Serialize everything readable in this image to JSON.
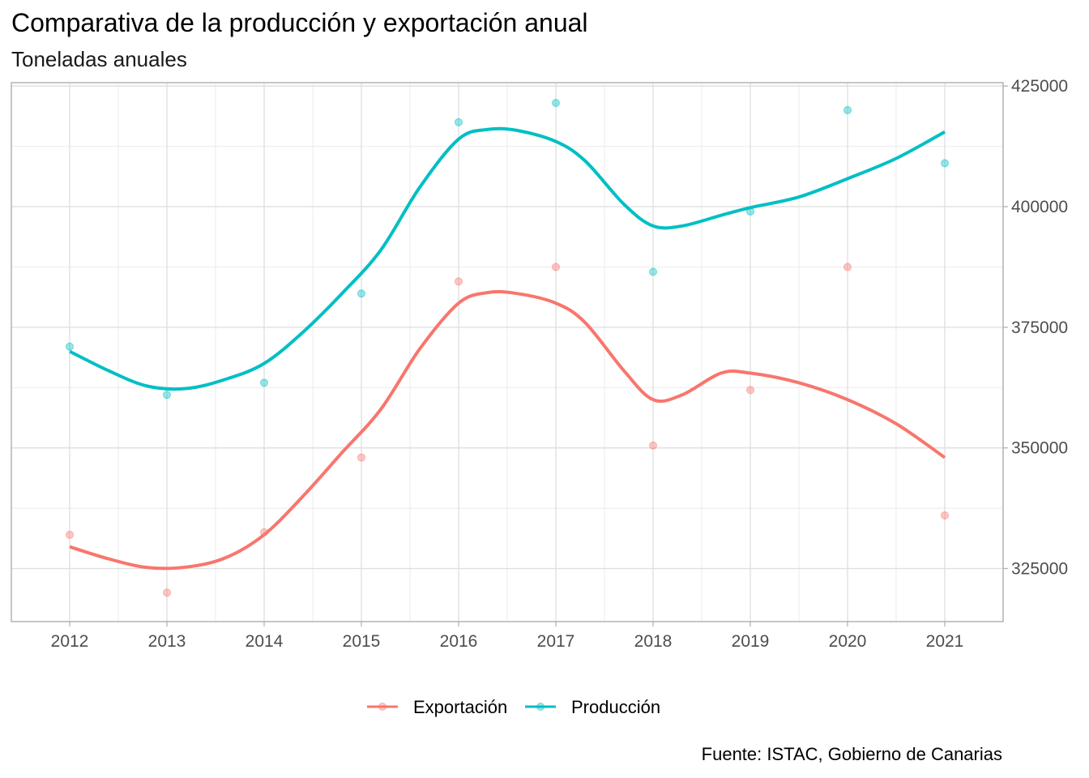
{
  "title": "Comparativa de la producción y exportación anual",
  "subtitle": "Toneladas anuales",
  "caption": "Fuente: ISTAC, Gobierno de Canarias",
  "chart_data": {
    "type": "scatter",
    "x": [
      2012,
      2013,
      2014,
      2015,
      2016,
      2017,
      2018,
      2019,
      2020,
      2021
    ],
    "xlim": [
      2011.4,
      2021.6
    ],
    "ylim": [
      314000,
      425700
    ],
    "y_ticks": [
      325000,
      350000,
      375000,
      400000,
      425000
    ],
    "y_axis_position": "right",
    "grid": true,
    "legend_position": "bottom",
    "series": [
      {
        "name": "Exportación",
        "color": "#F8766D",
        "points": [
          332000,
          320000,
          332500,
          348000,
          384500,
          387500,
          350500,
          362000,
          387500,
          336000
        ],
        "smooth": [
          329500,
          325100,
          332300,
          353000,
          380000,
          379500,
          360000,
          365500,
          360000,
          348000
        ],
        "smooth_points": [
          [
            2012.0,
            329500
          ],
          [
            2012.4,
            327000
          ],
          [
            2012.8,
            325200
          ],
          [
            2013.2,
            325300
          ],
          [
            2013.6,
            327200
          ],
          [
            2014.0,
            332000
          ],
          [
            2014.4,
            340000
          ],
          [
            2014.8,
            349000
          ],
          [
            2015.2,
            358000
          ],
          [
            2015.6,
            370500
          ],
          [
            2016.0,
            380000
          ],
          [
            2016.3,
            382200
          ],
          [
            2016.6,
            382000
          ],
          [
            2017.0,
            380000
          ],
          [
            2017.3,
            376000
          ],
          [
            2017.7,
            366000
          ],
          [
            2018.0,
            360000
          ],
          [
            2018.3,
            361000
          ],
          [
            2018.7,
            365500
          ],
          [
            2019.0,
            365500
          ],
          [
            2019.5,
            363500
          ],
          [
            2020.0,
            360000
          ],
          [
            2020.5,
            355000
          ],
          [
            2021.0,
            348000
          ]
        ]
      },
      {
        "name": "Producción",
        "color": "#00BFC4",
        "points": [
          371000,
          361000,
          363500,
          382000,
          417500,
          421500,
          386500,
          399000,
          420000,
          409000
        ],
        "smooth": [
          370000,
          362100,
          367500,
          387000,
          414000,
          413500,
          396000,
          399500,
          406000,
          415500
        ],
        "smooth_points": [
          [
            2012.0,
            370000
          ],
          [
            2012.4,
            366000
          ],
          [
            2012.8,
            362800
          ],
          [
            2013.2,
            362300
          ],
          [
            2013.6,
            364200
          ],
          [
            2014.0,
            367500
          ],
          [
            2014.4,
            374000
          ],
          [
            2014.8,
            382000
          ],
          [
            2015.2,
            391000
          ],
          [
            2015.6,
            404000
          ],
          [
            2016.0,
            414000
          ],
          [
            2016.3,
            416000
          ],
          [
            2016.6,
            415800
          ],
          [
            2017.0,
            413500
          ],
          [
            2017.3,
            409500
          ],
          [
            2017.7,
            400500
          ],
          [
            2018.0,
            396000
          ],
          [
            2018.3,
            396000
          ],
          [
            2018.7,
            398200
          ],
          [
            2019.0,
            399800
          ],
          [
            2019.5,
            402000
          ],
          [
            2020.0,
            405800
          ],
          [
            2020.5,
            410000
          ],
          [
            2021.0,
            415500
          ]
        ]
      }
    ]
  }
}
